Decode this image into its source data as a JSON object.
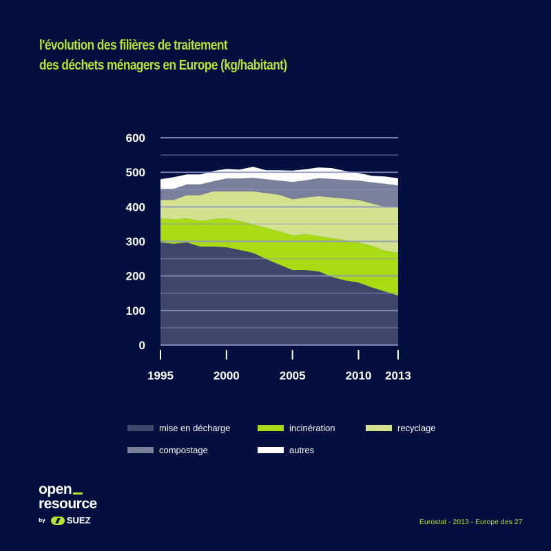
{
  "header": {
    "title_line1": "l'évolution des filières de traitement",
    "title_line2": "des déchets ménagers en Europe (kg/habitant)"
  },
  "colors": {
    "background": "#03103f",
    "accent": "#b6e234",
    "gridline": "#8b93c2",
    "landfill": "#3f4669",
    "incineration": "#a8dc14",
    "recycling": "#d4e28f",
    "composting": "#7a7f9c",
    "autres": "#ffffff"
  },
  "chart_data": {
    "type": "area",
    "stacked": true,
    "title": "l'évolution des filières de traitement des déchets ménagers en Europe (kg/habitant)",
    "xlabel": "",
    "ylabel": "",
    "x": [
      1995,
      1996,
      1997,
      1998,
      1999,
      2000,
      2001,
      2002,
      2003,
      2004,
      2005,
      2006,
      2007,
      2008,
      2009,
      2010,
      2011,
      2012,
      2013
    ],
    "xlim": [
      1995,
      2013
    ],
    "ylim": [
      0,
      600
    ],
    "x_ticks": [
      "1995",
      "2000",
      "2005",
      "2010",
      "2013"
    ],
    "x_tick_values": [
      1995,
      2000,
      2005,
      2010,
      2013
    ],
    "y_ticks": [
      "0",
      "100",
      "200",
      "300",
      "400",
      "500",
      "600"
    ],
    "y_tick_values": [
      0,
      100,
      200,
      300,
      400,
      500,
      600
    ],
    "grid": true,
    "grid_step": 50,
    "legend_position": "bottom",
    "series": [
      {
        "name": "mise en décharge",
        "key": "landfill",
        "values": [
          297,
          293,
          297,
          285,
          285,
          283,
          275,
          267,
          249,
          233,
          217,
          217,
          213,
          197,
          187,
          181,
          167,
          155,
          143
        ]
      },
      {
        "name": "incinération",
        "key": "incineration",
        "values": [
          70,
          70,
          70,
          74,
          79,
          84,
          84,
          82,
          90,
          96,
          100,
          104,
          102,
          112,
          116,
          116,
          120,
          118,
          124
        ]
      },
      {
        "name": "recyclage",
        "key": "recycling",
        "values": [
          53,
          57,
          67,
          75,
          81,
          78,
          86,
          96,
          101,
          106,
          105,
          106,
          116,
          118,
          121,
          123,
          123,
          127,
          132
        ]
      },
      {
        "name": "compostage",
        "key": "composting",
        "values": [
          32,
          32,
          31,
          31,
          29,
          37,
          37,
          39,
          40,
          41,
          50,
          50,
          52,
          54,
          54,
          56,
          61,
          67,
          63
        ]
      },
      {
        "name": "autres",
        "key": "autres",
        "values": [
          28,
          34,
          29,
          29,
          30,
          28,
          26,
          32,
          26,
          30,
          33,
          32,
          31,
          31,
          26,
          22,
          19,
          21,
          21
        ]
      }
    ]
  },
  "legend": {
    "items": [
      {
        "label": "mise en décharge",
        "key": "landfill"
      },
      {
        "label": "incinération",
        "key": "incineration"
      },
      {
        "label": "recyclage",
        "key": "recycling"
      },
      {
        "label": "compostage",
        "key": "composting"
      },
      {
        "label": "autres",
        "key": "autres"
      }
    ]
  },
  "footer": {
    "logo_line1": "open",
    "logo_line2": "resource",
    "logo_by": "by",
    "logo_brand": "SUEZ",
    "source": "Eurostat - 2013 - Europe des 27"
  }
}
